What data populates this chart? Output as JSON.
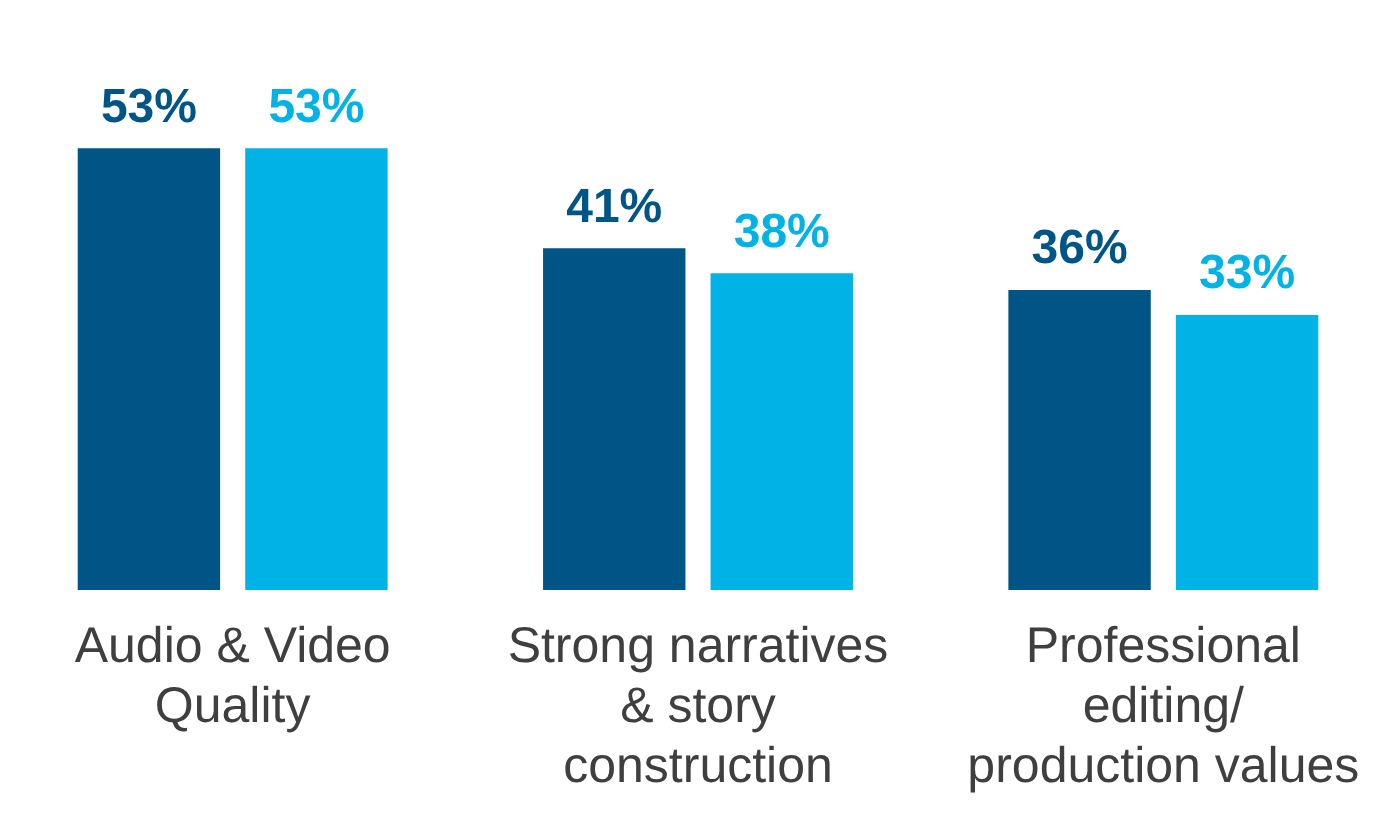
{
  "chart_data": {
    "type": "bar",
    "categories": [
      "Audio & Video\nQuality",
      "Strong narratives\n& story\nconstruction",
      "Professional\nediting/\nproduction values"
    ],
    "series": [
      {
        "color": "#005587",
        "values": [
          53,
          41,
          36
        ],
        "value_labels": [
          "53%",
          "41%",
          "36%"
        ]
      },
      {
        "color": "#00b2e6",
        "values": [
          53,
          38,
          33
        ],
        "value_labels": [
          "53%",
          "38%",
          "33%"
        ]
      }
    ],
    "legend": false
  }
}
